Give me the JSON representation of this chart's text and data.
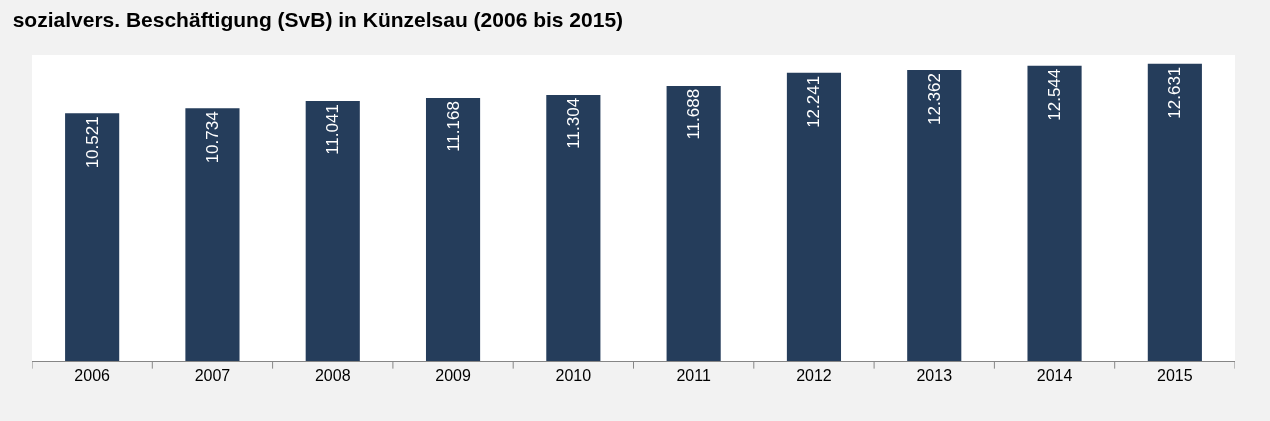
{
  "chart_data": {
    "type": "bar",
    "title": "sozialvers. Beschäftigung (SvB) in Künzelsau (2006 bis 2015)",
    "categories": [
      "2006",
      "2007",
      "2008",
      "2009",
      "2010",
      "2011",
      "2012",
      "2013",
      "2014",
      "2015"
    ],
    "values": [
      10521,
      10734,
      11041,
      11168,
      11304,
      11688,
      12241,
      12362,
      12544,
      12631
    ],
    "value_labels": [
      "10.521",
      "10.734",
      "11.041",
      "11.168",
      "11.304",
      "11.688",
      "12.241",
      "12.362",
      "12.544",
      "12.631"
    ],
    "color": "#253d5b",
    "ylim": [
      0,
      13000
    ],
    "tick_labels": "x"
  }
}
